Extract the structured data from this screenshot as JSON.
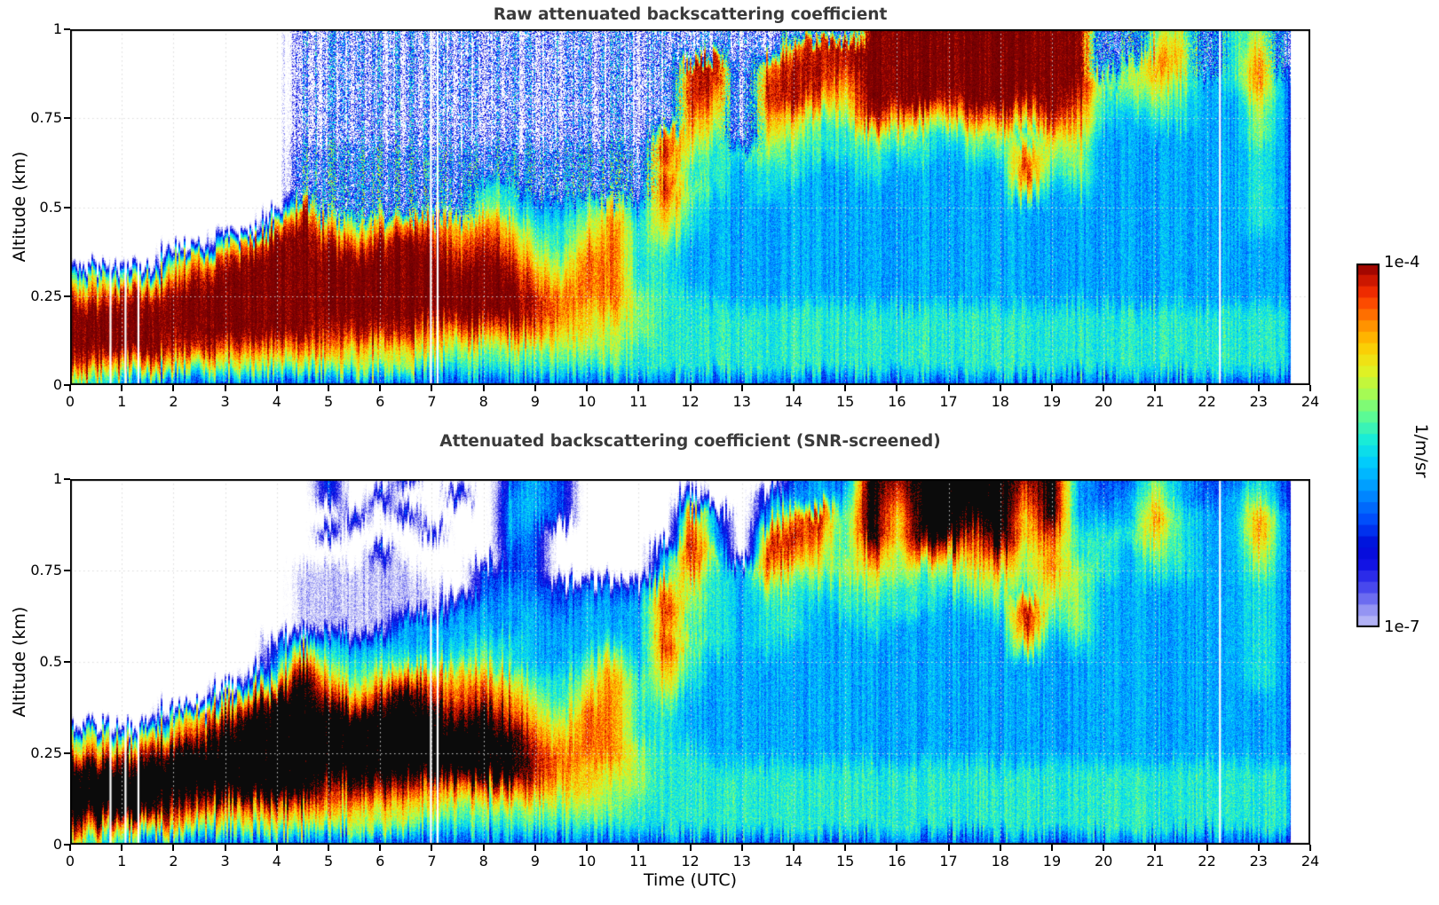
{
  "figure": {
    "background": "#ffffff",
    "title_color": "#3a3a3a",
    "text_color": "#000000"
  },
  "chart_data": [
    {
      "type": "heatmap",
      "title": "Raw attenuated backscattering coefficient",
      "xlabel": "",
      "ylabel": "Altitude (km)",
      "xlim": [
        0,
        24
      ],
      "ylim": [
        0,
        1
      ],
      "x_ticks": [
        0,
        1,
        2,
        3,
        4,
        5,
        6,
        7,
        8,
        9,
        10,
        11,
        12,
        13,
        14,
        15,
        16,
        17,
        18,
        19,
        20,
        21,
        22,
        23,
        24
      ],
      "y_ticks": [
        "0",
        "0.25",
        "0.5",
        "0.75",
        "1"
      ],
      "value_scale": "log10 attenuated backscatter (1/m/sr)",
      "value_range_log10": [
        -7,
        -4
      ],
      "saturation_color": "darkred",
      "grid_on": true,
      "no_data_time_gaps_utc": [
        0.78,
        1.07,
        1.32,
        6.98,
        7.11,
        22.25
      ],
      "data_end_utc": 23.62,
      "grid_t_step": 0.5,
      "grid_z_step": 0.05,
      "grid_rows_top_to_bottom": [
        ".........nnnnnnnnnnnnnnnnnnnnnnAAAAAAAAAmm66m56m.",
        ".........nnnnnnnnnnnnnnnnnnn899AAAAAAAAAmm77m57m.",
        ".........nnnnnnnnnnnnnnn99n8999AAAAAAAAAm687m58m.",
        ".........nnnnnnnnnnnnnnn99n9998AAAAAAAAA66764584.",
        ".........nnnnnnnnnnnnnnn98n9987AAA9AA9A955654474.",
        ".........nnnnnnnnnnnnnnn87n876698778879854554464.",
        ".........nnnnnnnnnnnnnn876n765566556657744444464.",
        ".........mmmmmmmmmmmmmm9655655555545586644444454.",
        ".........mmmmmmmmmmmmmm8554554454444495644444454.",
        ".........mmmmmmm55mmmmm9654544444444474544444454.",
        ".........9mmmmmm65445748544444444444444444444454.",
        "........7A76788787556857544444444444444444444454.",
        "......68AA989A9898657856444444444444444444444444.",
        "....679AAAAAAAA9A9768855444444444444444444444444.",
        "565689AAAAAAAAAAAA878855444444444444444444444444.",
        "8899AAAAAAAAAAAAAA988865544444444444444444444444.",
        "AAAAAAAAAAAAAAAAAA987765555555555555555555555555.",
        "AAAAAAAAAA99998888877665555555555555555555555555.",
        "AAAA99888887777666666655555555555555555555555555.",
        "987776666666665555555555555555555555555555555555.",
        "654333333333333333333333333333333333333333333333."
      ]
    },
    {
      "type": "heatmap",
      "title": "Attenuated backscattering coefficient (SNR-screened)",
      "xlabel": "Time (UTC)",
      "ylabel": "Altitude (km)",
      "xlim": [
        0,
        24
      ],
      "ylim": [
        0,
        1
      ],
      "x_ticks": [
        0,
        1,
        2,
        3,
        4,
        5,
        6,
        7,
        8,
        9,
        10,
        11,
        12,
        13,
        14,
        15,
        16,
        17,
        18,
        19,
        20,
        21,
        22,
        23,
        24
      ],
      "y_ticks": [
        "0",
        "0.25",
        "0.5",
        "0.75",
        "1"
      ],
      "value_scale": "log10 attenuated backscatter (1/m/sr)",
      "value_range_log10": [
        -7,
        -4
      ],
      "saturation_color": "black",
      "grid_on": true,
      "no_data_time_gaps_utc": [
        0.78,
        1.07,
        1.32,
        6.98,
        7.11,
        22.25
      ],
      "data_end_utc": 23.62,
      "grid_t_step": 0.5,
      "grid_z_step": 0.05,
      "grid_rows_top_to_bottom": [
        "..........3..3...343........343X9XXXX9X433643353.",
        "..........3.3..3.443....3..3444X8XXXX8X434743463.",
        "...........3.3...443....84.4895X7XXXX7X444854484.",
        "..........3...3..43.....94.8985X7XX9X79555754484.",
        "............3....33....496.987596988968554654474.",
        ".........ppppp..333....5854866676667768654554464.",
        ".........pppppp.34333338654655565556657644444454.",
        ".........pppppp344434449654554555545596644444454.",
        ".........pppp44444444448554554454444495644444454.",
        "........3544444455444549654544444444474544444454.",
        "........4955555565445748544444444444444444444454.",
        ".......37X76788787556857544444444444444444444454.",
        "......68XX989X9898657856444444444444444444444444.",
        "....679XXXXXXXX9X9768855444444444444444444444444.",
        "565689XXXXXXXXXXXX878855444444444444444444444444.",
        "8899XXXXXXXXXXXXXX988865544444444444444444444444.",
        "XXXXXXXXXXXXXXXXXX987765555555555555555555555555.",
        "XXXXXXXXXX99998888877665555555555555555555555555.",
        "XXXX99888887777666666655555555555555555555555555.",
        "987776666666665555555555555555555555555555555555.",
        "654333333333333333333333333333333333333333333333."
      ]
    }
  ],
  "encoding": {
    "no_data_char": ".",
    "noise_sparse_char": "n",
    "noise_dense_char": "m",
    "faint_char": "p",
    "char_to_log10": {
      "0": -7.2,
      "1": -6.86,
      "2": -6.51,
      "3": -6.17,
      "4": -5.83,
      "5": -5.48,
      "6": -5.14,
      "7": -4.8,
      "8": -4.45,
      "9": -4.11,
      "A": -3.85,
      "X": -3.45,
      "n": -7.0,
      "m": -6.3,
      "p": -7.1,
      ".": -7.8
    }
  },
  "colorbar": {
    "top_label": "1e-4",
    "bottom_label": "1e-7",
    "unit_label": "1/m/sr",
    "scale": "log",
    "stops": [
      [
        0.0,
        "#ffffff"
      ],
      [
        0.04,
        "#eeeefc"
      ],
      [
        0.09,
        "#cdcdf8"
      ],
      [
        0.14,
        "#9696f3"
      ],
      [
        0.19,
        "#5050ee"
      ],
      [
        0.25,
        "#1414e6"
      ],
      [
        0.3,
        "#000ad7"
      ],
      [
        0.36,
        "#0046fa"
      ],
      [
        0.43,
        "#008cff"
      ],
      [
        0.5,
        "#00c8ff"
      ],
      [
        0.56,
        "#14ebdc"
      ],
      [
        0.62,
        "#5afa96"
      ],
      [
        0.68,
        "#aafa50"
      ],
      [
        0.74,
        "#e6f01e"
      ],
      [
        0.8,
        "#ffc800"
      ],
      [
        0.86,
        "#ff8200"
      ],
      [
        0.92,
        "#fa3200"
      ],
      [
        0.97,
        "#be0f00"
      ],
      [
        1.0,
        "#8c0000"
      ]
    ]
  }
}
